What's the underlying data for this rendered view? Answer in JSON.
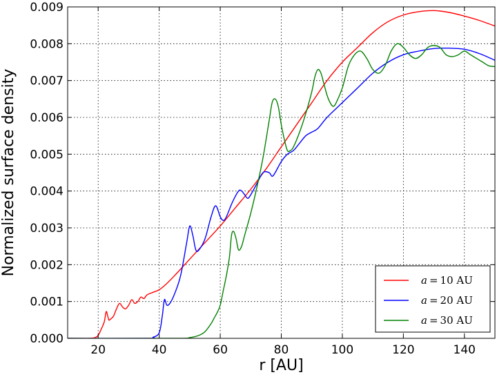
{
  "chart_data": {
    "type": "line",
    "xlabel": "r [AU]",
    "ylabel": "Normalized surface density",
    "xlim": [
      10,
      150
    ],
    "ylim": [
      0,
      0.009
    ],
    "xticks": [
      20,
      40,
      60,
      80,
      100,
      120,
      140
    ],
    "yticks": [
      "0.000",
      "0.001",
      "0.002",
      "0.003",
      "0.004",
      "0.005",
      "0.006",
      "0.007",
      "0.008",
      "0.009"
    ],
    "grid": true,
    "legend_position": "lower-right",
    "series": [
      {
        "name": "a = 10 AU",
        "legend_var": "a",
        "legend_eq": "=",
        "legend_value": "10 AU",
        "color": "#ff0000",
        "x": [
          17,
          19,
          20,
          21,
          22,
          22.6,
          23,
          23.5,
          24,
          25,
          26,
          27,
          28,
          29,
          30,
          31,
          32,
          33,
          34,
          35,
          36,
          38,
          40,
          42,
          45,
          50,
          55,
          60,
          65,
          70,
          75,
          80,
          85,
          90,
          95,
          100,
          105,
          110,
          115,
          120,
          125,
          130,
          135,
          140,
          145,
          150
        ],
        "y": [
          0,
          2e-05,
          8e-05,
          0.00025,
          0.00045,
          0.00072,
          0.00065,
          0.0005,
          0.00052,
          0.0006,
          0.0008,
          0.00095,
          0.00085,
          0.0008,
          0.0009,
          0.00105,
          0.00095,
          0.001,
          0.00112,
          0.00108,
          0.00118,
          0.00125,
          0.00132,
          0.00145,
          0.0017,
          0.00215,
          0.0026,
          0.00305,
          0.00355,
          0.00405,
          0.0046,
          0.0052,
          0.0058,
          0.0064,
          0.007,
          0.0075,
          0.0079,
          0.0083,
          0.0086,
          0.00878,
          0.00887,
          0.0089,
          0.00885,
          0.00875,
          0.00863,
          0.00848
        ]
      },
      {
        "name": "a = 20 AU",
        "legend_var": "a",
        "legend_eq": "=",
        "legend_value": "20 AU",
        "color": "#0000ff",
        "x": [
          36,
          38,
          40,
          41,
          41.7,
          42.5,
          43.5,
          45,
          47,
          49,
          50,
          51,
          52,
          53,
          55,
          57,
          58.5,
          60,
          61,
          62,
          64,
          66,
          67,
          68,
          69,
          70,
          72,
          74,
          76,
          77,
          78,
          80,
          82,
          84,
          86,
          88,
          90,
          92,
          95,
          100,
          105,
          110,
          115,
          120,
          125,
          130,
          135,
          140,
          145,
          150
        ],
        "y": [
          0,
          3e-05,
          0.00015,
          0.0006,
          0.00105,
          0.0009,
          0.00095,
          0.0012,
          0.0017,
          0.0026,
          0.00305,
          0.0028,
          0.0024,
          0.0024,
          0.0027,
          0.0033,
          0.0036,
          0.0033,
          0.0032,
          0.0033,
          0.0037,
          0.004,
          0.004,
          0.0039,
          0.0038,
          0.0039,
          0.0042,
          0.0045,
          0.0045,
          0.0044,
          0.0045,
          0.0048,
          0.005,
          0.0051,
          0.0053,
          0.0055,
          0.0056,
          0.0057,
          0.006,
          0.0064,
          0.0068,
          0.0072,
          0.0075,
          0.0077,
          0.0078,
          0.00787,
          0.00788,
          0.00785,
          0.00773,
          0.00755
        ]
      },
      {
        "name": "a = 30 AU",
        "legend_var": "a",
        "legend_eq": "=",
        "legend_value": "30 AU",
        "color": "#008000",
        "x": [
          45,
          50,
          53,
          55,
          57,
          58,
          59,
          60,
          61,
          62,
          63,
          63.7,
          64.4,
          65.2,
          66,
          67,
          68,
          70,
          72,
          74,
          76,
          77,
          78,
          79,
          80,
          81,
          82,
          83,
          84,
          86,
          88,
          90,
          91,
          92,
          93,
          94,
          95,
          96,
          97,
          98,
          100,
          102,
          104,
          106,
          108,
          110,
          112,
          114,
          116,
          118,
          120,
          122,
          124,
          126,
          128,
          130,
          132,
          134,
          136,
          138,
          140,
          142,
          144,
          146,
          148,
          150
        ],
        "y": [
          0,
          2e-05,
          8e-05,
          0.00018,
          0.0004,
          0.00055,
          0.0007,
          0.0009,
          0.0013,
          0.0017,
          0.0022,
          0.0028,
          0.0029,
          0.0027,
          0.0024,
          0.0025,
          0.0028,
          0.0034,
          0.0041,
          0.0049,
          0.0059,
          0.0064,
          0.0065,
          0.0063,
          0.0058,
          0.0054,
          0.0051,
          0.0051,
          0.0052,
          0.0056,
          0.0061,
          0.0067,
          0.0071,
          0.0073,
          0.0072,
          0.0069,
          0.0066,
          0.0064,
          0.0063,
          0.0064,
          0.0068,
          0.0074,
          0.0077,
          0.0078,
          0.0076,
          0.0073,
          0.0072,
          0.0074,
          0.0078,
          0.008,
          0.0079,
          0.0077,
          0.0076,
          0.0077,
          0.0079,
          0.00795,
          0.0079,
          0.0077,
          0.00765,
          0.0077,
          0.0078,
          0.0077,
          0.0076,
          0.0075,
          0.0074,
          0.00738
        ]
      }
    ]
  }
}
